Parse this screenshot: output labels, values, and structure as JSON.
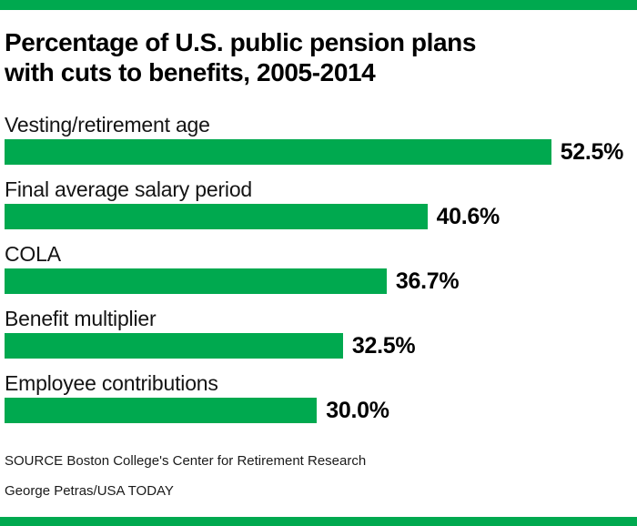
{
  "colors": {
    "accent_green": "#00a94f",
    "title_text": "#000000",
    "label_text": "#141414",
    "footer_text": "#1a1a1a",
    "background": "#ffffff"
  },
  "header": {
    "title_line1": "Percentage of U.S. public pension plans",
    "title_line2": "with cuts to benefits, 2005-2014"
  },
  "chart_data": {
    "type": "bar",
    "orientation": "horizontal",
    "title": "Percentage of U.S. public pension plans with cuts to benefits, 2005-2014",
    "categories": [
      "Vesting/retirement age",
      "Final average salary period",
      "COLA",
      "Benefit multiplier",
      "Employee contributions"
    ],
    "values": [
      52.5,
      40.6,
      36.7,
      32.5,
      30.0
    ],
    "value_labels": [
      "52.5%",
      "40.6%",
      "36.7%",
      "32.5%",
      "30.0%"
    ],
    "xlabel": "",
    "ylabel": "",
    "xlim": [
      0,
      60.3
    ],
    "bar_color": "#00a94f",
    "grid": false,
    "legend": false,
    "value_label_position": "right-of-bar"
  },
  "footer": {
    "source": "SOURCE Boston College's Center for Retirement Research",
    "credit": "George Petras/USA TODAY"
  }
}
